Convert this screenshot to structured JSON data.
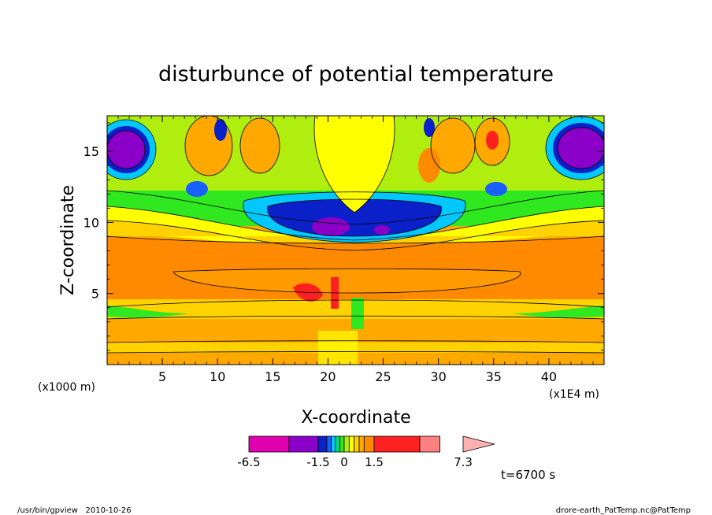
{
  "chart_data": {
    "type": "heatmap",
    "title": "disturbunce of potential temperature",
    "xlabel": "X-coordinate",
    "ylabel": "Z-coordinate",
    "x_unit_left": "(x1000 m)",
    "x_unit_right": "(x1E4 m)",
    "xlim": [
      0,
      45
    ],
    "ylim": [
      0,
      17.5
    ],
    "x_ticks": [
      5,
      10,
      15,
      20,
      25,
      30,
      35,
      40
    ],
    "y_ticks": [
      5,
      10,
      15
    ],
    "colorbar": {
      "colors": [
        "#e000b0",
        "#8a00c8",
        "#0a20c8",
        "#1a60ff",
        "#00c8ff",
        "#00d88a",
        "#30e820",
        "#b0ee10",
        "#ffff00",
        "#ffd200",
        "#ffa800",
        "#ff8a00",
        "#ff2020",
        "#ff8080",
        "#ffb0b0"
      ],
      "labels": [
        {
          "value": -6.5,
          "text": "-6.5"
        },
        {
          "value": -1.5,
          "text": "-1.5"
        },
        {
          "value": 0,
          "text": "0"
        },
        {
          "value": 1.5,
          "text": "1.5"
        },
        {
          "value": 7.3,
          "text": "7.3"
        }
      ]
    },
    "time_label": "t=6700 s"
  },
  "footer": {
    "left": "/usr/bin/gpview   2010-10-26",
    "right": "drore-earth_PatTemp.nc@PatTemp"
  }
}
